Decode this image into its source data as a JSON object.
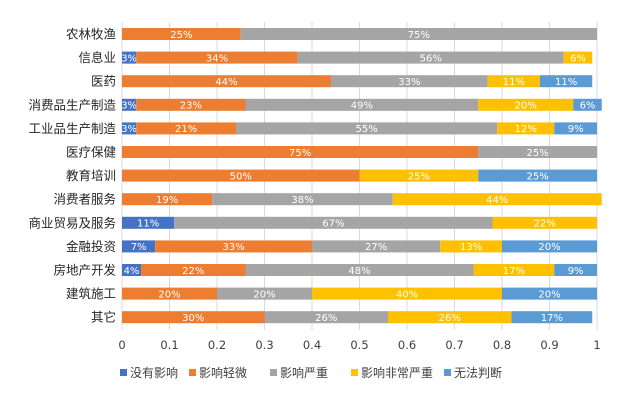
{
  "chart_data": {
    "type": "bar",
    "orientation": "horizontal",
    "stacked": true,
    "categories": [
      "农林牧渔",
      "信息业",
      "医药",
      "消费品生产制造",
      "工业品生产制造",
      "医疗保健",
      "教育培训",
      "消费者服务",
      "商业贸易及服务",
      "金融投资",
      "房地产开发",
      "建筑施工",
      "其它"
    ],
    "series": [
      {
        "name": "没有影响",
        "color": "#4472c4",
        "values": [
          0,
          0.03,
          0,
          0.03,
          0.03,
          0,
          0,
          0,
          0.11,
          0.07,
          0.04,
          0,
          0
        ],
        "labels": [
          "",
          "3%",
          "",
          "3%",
          "3%",
          "",
          "",
          "",
          "11%",
          "7%",
          "4%",
          "",
          ""
        ]
      },
      {
        "name": "影响轻微",
        "color": "#ed7d31",
        "values": [
          0.25,
          0.34,
          0.44,
          0.23,
          0.21,
          0.75,
          0.5,
          0.19,
          0,
          0.33,
          0.22,
          0.2,
          0.3
        ],
        "labels": [
          "25%",
          "34%",
          "44%",
          "23%",
          "21%",
          "75%",
          "50%",
          "19%",
          "",
          "33%",
          "22%",
          "20%",
          "30%"
        ]
      },
      {
        "name": "影响严重",
        "color": "#a5a5a5",
        "values": [
          0.75,
          0.56,
          0.33,
          0.49,
          0.55,
          0.25,
          0,
          0.38,
          0.67,
          0.27,
          0.48,
          0.2,
          0.26
        ],
        "labels": [
          "75%",
          "56%",
          "33%",
          "49%",
          "55%",
          "25%",
          "",
          "38%",
          "67%",
          "27%",
          "48%",
          "20%",
          "26%"
        ]
      },
      {
        "name": "影响非常严重",
        "color": "#ffc000",
        "values": [
          0,
          0.06,
          0.11,
          0.2,
          0.12,
          0,
          0.25,
          0.44,
          0.22,
          0.13,
          0.17,
          0.4,
          0.26
        ],
        "labels": [
          "",
          "6%",
          "11%",
          "20%",
          "12%",
          "",
          "25%",
          "44%",
          "22%",
          "13%",
          "17%",
          "40%",
          "26%"
        ]
      },
      {
        "name": "无法判断",
        "color": "#5b9bd5",
        "values": [
          0,
          0,
          0.11,
          0.06,
          0.09,
          0,
          0.25,
          0,
          0,
          0.2,
          0.09,
          0.2,
          0.17
        ],
        "labels": [
          "",
          "",
          "11%",
          "6%",
          "9%",
          "",
          "25%",
          "",
          "",
          "20%",
          "9%",
          "20%",
          "17%"
        ]
      }
    ],
    "xlim": [
      0,
      1
    ],
    "xticks": [
      "0",
      "0.1",
      "0.2",
      "0.3",
      "0.4",
      "0.5",
      "0.6",
      "0.7",
      "0.8",
      "0.9",
      "1"
    ],
    "grid": true,
    "legend_position": "bottom"
  }
}
